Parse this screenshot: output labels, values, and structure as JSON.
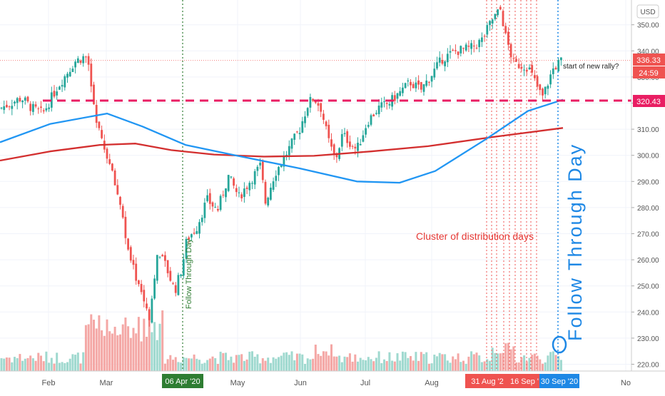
{
  "chart_data": {
    "type": "candlestick",
    "currency": "USD",
    "y_ticks": [
      220,
      230,
      240,
      250,
      260,
      270,
      280,
      290,
      300,
      310,
      320,
      330,
      340,
      350
    ],
    "y_tick_labels": [
      "220.00",
      "230.00",
      "240.00",
      "250.00",
      "260.00",
      "270.00",
      "280.00",
      "290.00",
      "300.00",
      "310.00",
      "320.00",
      "330.00",
      "340.00",
      "350.00"
    ],
    "ylim": [
      218,
      356
    ],
    "x_labels": [
      "Feb",
      "Mar",
      "May",
      "Jun",
      "Jul",
      "Aug",
      "No"
    ],
    "price_label": "336.33",
    "countdown_label": "24:59",
    "support_level": 320.43,
    "support_label": "320.43",
    "date_badges": [
      "06 Apr '20",
      "31 Aug '2",
      "16 Sep '",
      "30 Sep '20"
    ],
    "annotations": {
      "rally": "start of new rally?",
      "cluster": "Cluster of distribution days",
      "ftd_small": "Follow Through Day",
      "ftd_big": "Follow Through Day"
    },
    "series": [
      {
        "name": "MA-red",
        "color": "#d32f2f",
        "y": [
          298,
          301.5,
          304,
          304.5,
          302,
          300.3,
          299.5,
          299.8,
          301.5,
          303.5,
          307,
          310.5
        ]
      },
      {
        "name": "MA-blue",
        "color": "#2196f3",
        "y": [
          305,
          312,
          316,
          311,
          304,
          300,
          295,
          290,
          289.5,
          294,
          306,
          317,
          321.3
        ]
      }
    ],
    "colors": {
      "up": "#26a69a",
      "down": "#ef5350",
      "ma_long": "#d32f2f",
      "ma_short": "#2196f3",
      "support": "#e91e63",
      "axis_text": "#555555",
      "badge_green": "#2e7d32",
      "badge_red": "#ef5350",
      "badge_blue": "#1e88e5"
    }
  }
}
